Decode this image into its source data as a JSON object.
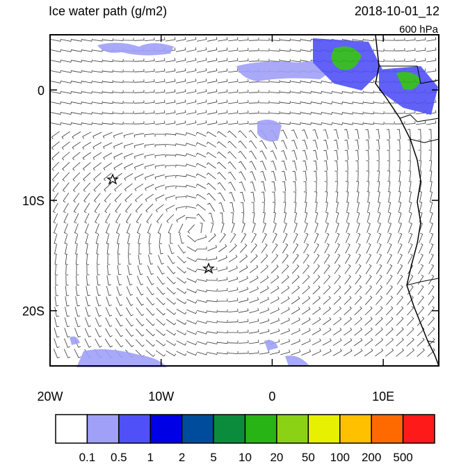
{
  "map": {
    "title": "Ice water path (g/m2)",
    "date": "2018-10-01_12",
    "level": "600 hPa",
    "xlim": [
      -20,
      15
    ],
    "ylim": [
      -25,
      5
    ],
    "xticks": [
      {
        "value": -20,
        "label": "20W"
      },
      {
        "value": -10,
        "label": "10W"
      },
      0,
      {
        "value": 10,
        "label": "10E"
      }
    ],
    "yticks": [
      0,
      {
        "value": -10,
        "label": "10S"
      },
      {
        "value": -20,
        "label": "20S"
      }
    ]
  },
  "colorbar": {
    "levels": [
      0.1,
      0.5,
      1,
      2,
      5,
      10,
      20,
      50,
      100,
      200,
      500
    ],
    "colors": [
      "#ffffff",
      "#a0a0f8",
      "#5050f8",
      "#0000e6",
      "#004c9c",
      "#0a8c3c",
      "#28b414",
      "#8cd214",
      "#e6f000",
      "#ffc000",
      "#ff6a00",
      "#ff1a1a"
    ]
  }
}
